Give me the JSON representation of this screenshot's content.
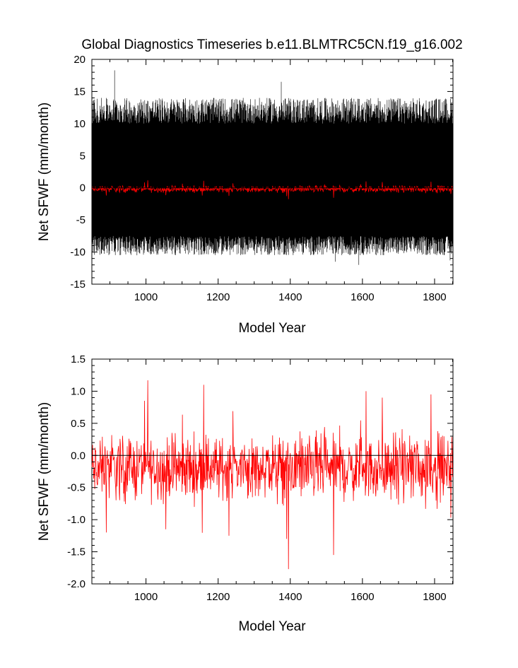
{
  "title": "Global Diagnostics Timeseries b.e11.BLMTRC5CN.f19_g16.002",
  "colors": {
    "monthly": "#000000",
    "annual": "#ff0000",
    "zero_line": "#000000"
  },
  "chart_data": [
    {
      "type": "line",
      "title": "Global Diagnostics Timeseries b.e11.BLMTRC5CN.f19_g16.002",
      "xlabel": "Model Year",
      "ylabel": "Net SFWF (mm/month)",
      "xlim": [
        850,
        1851
      ],
      "ylim": [
        -15,
        20
      ],
      "xticks": [
        "1000",
        "1200",
        "1400",
        "1600",
        "1800"
      ],
      "xtick_values": [
        1000,
        1200,
        1400,
        1600,
        1800
      ],
      "yticks": [
        "-15",
        "-10",
        "-5",
        "0",
        "5",
        "10",
        "15",
        "20"
      ],
      "ytick_values": [
        -15,
        -10,
        -5,
        0,
        5,
        10,
        15,
        20
      ],
      "grid": false,
      "reference_line": 0,
      "series": [
        {
          "color": "#000000",
          "resolution": "monthly",
          "annual_cycle_range": [
            -9,
            12
          ],
          "extremes": {
            "max": 18.3,
            "min": -12
          }
        },
        {
          "color": "#ff0000",
          "resolution": "annual",
          "range": [
            -1.8,
            1.2
          ]
        }
      ]
    },
    {
      "type": "line",
      "xlabel": "Model Year",
      "ylabel": "Net SFWF (mm/month)",
      "xlim": [
        850,
        1851
      ],
      "ylim": [
        -2.0,
        1.5
      ],
      "xticks": [
        "1000",
        "1200",
        "1400",
        "1600",
        "1800"
      ],
      "xtick_values": [
        1000,
        1200,
        1400,
        1600,
        1800
      ],
      "yticks": [
        "-2.0",
        "-1.5",
        "-1.0",
        "-0.5",
        "0.0",
        "0.5",
        "1.0",
        "1.5"
      ],
      "ytick_values": [
        -2.0,
        -1.5,
        -1.0,
        -0.5,
        0.0,
        0.5,
        1.0,
        1.5
      ],
      "grid": false,
      "reference_line": 0,
      "series": [
        {
          "color": "#ff0000",
          "resolution": "annual",
          "mean": -0.2,
          "notable_points": [
            {
              "x": 890,
              "y": -1.2
            },
            {
              "x": 1005,
              "y": 1.17
            },
            {
              "x": 1055,
              "y": -1.15
            },
            {
              "x": 1160,
              "y": 1.1
            },
            {
              "x": 1230,
              "y": -1.25
            },
            {
              "x": 1390,
              "y": -1.3
            },
            {
              "x": 1395,
              "y": -1.77
            },
            {
              "x": 1520,
              "y": -1.55
            },
            {
              "x": 1610,
              "y": 1.0
            },
            {
              "x": 1655,
              "y": 0.9
            },
            {
              "x": 1790,
              "y": 0.95
            },
            {
              "x": 1845,
              "y": -0.97
            }
          ]
        }
      ]
    }
  ]
}
